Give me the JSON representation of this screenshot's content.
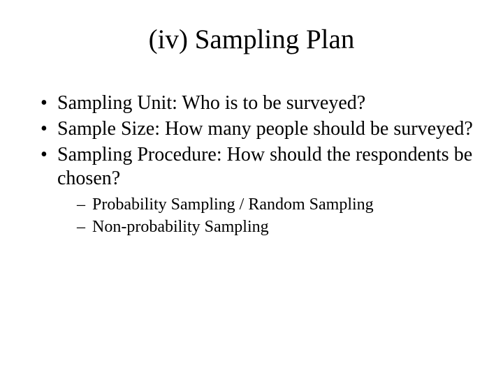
{
  "slide": {
    "title": "(iv) Sampling Plan",
    "bullets": [
      {
        "text": "Sampling Unit: Who is to be surveyed?"
      },
      {
        "text": "Sample Size: How many people should be surveyed?"
      },
      {
        "text": "Sampling Procedure: How should the respondents be chosen?",
        "children": [
          {
            "text": "Probability Sampling / Random Sampling"
          },
          {
            "text": "Non-probability Sampling"
          }
        ]
      }
    ]
  },
  "style": {
    "background_color": "#ffffff",
    "text_color": "#000000",
    "font_family": "Times New Roman",
    "title_fontsize": 39,
    "bullet_fontsize": 28,
    "subbullet_fontsize": 24,
    "slide_width": 720,
    "slide_height": 540
  }
}
